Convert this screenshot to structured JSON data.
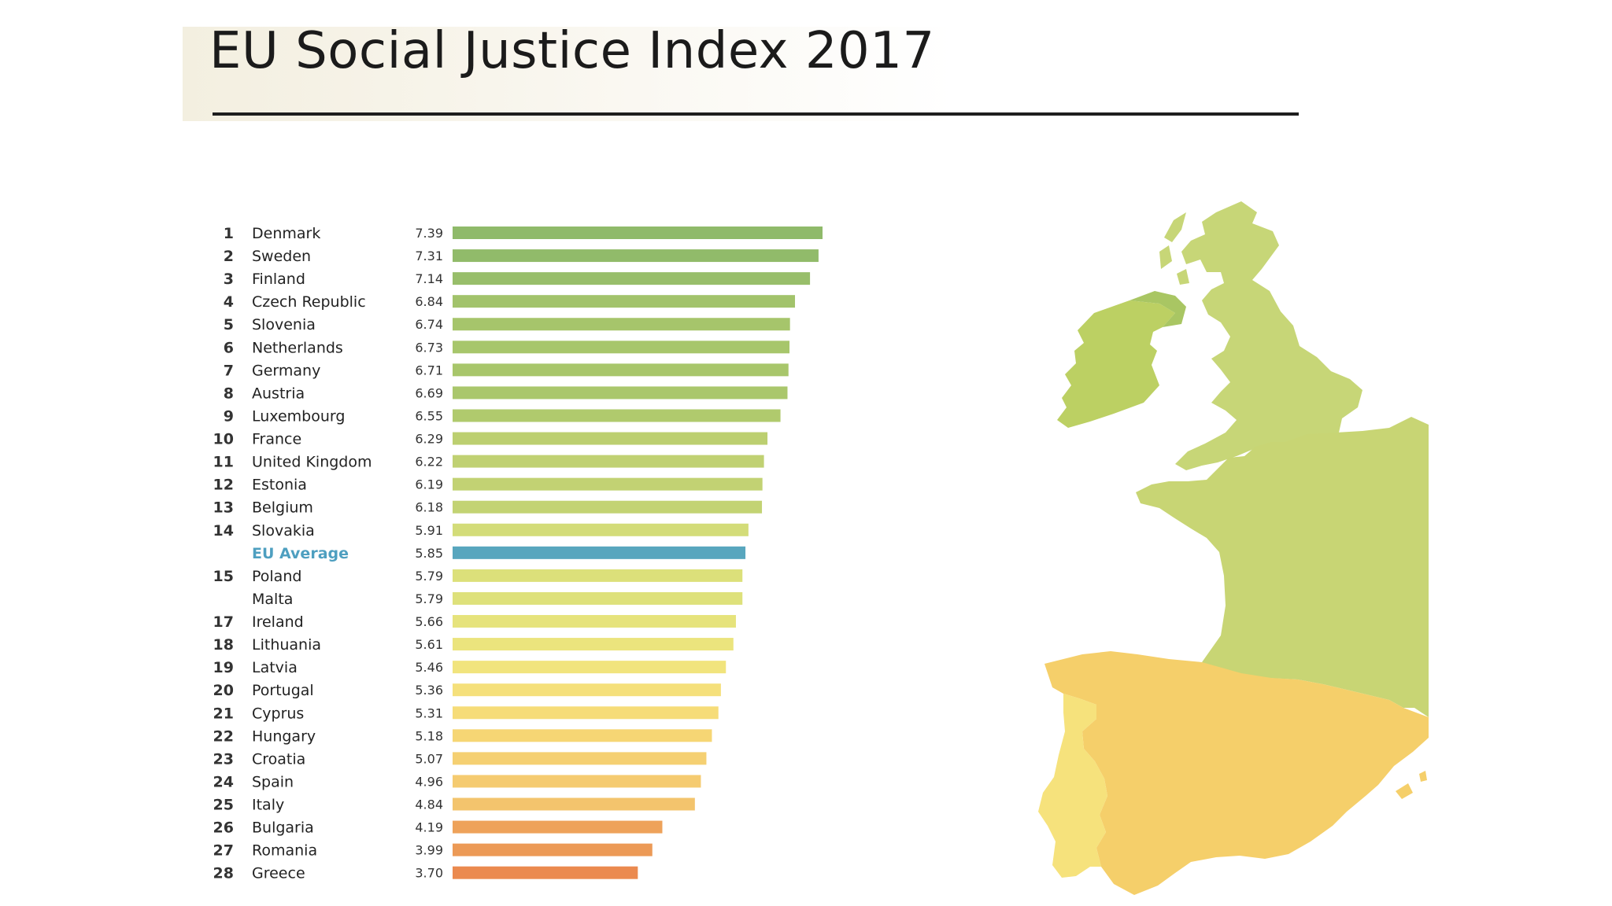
{
  "title": "EU Social Justice Index 2017",
  "colors": {
    "avg_bar": "#58a6be",
    "avg_text": "#4e9fc0",
    "map_ireland": "#bcd063",
    "map_uk": "#c7d677",
    "map_france": "#c8d574",
    "map_spain": "#f5cf6a",
    "map_portugal": "#f6e27c",
    "map_nir": "#a9c663"
  },
  "chart_data": {
    "type": "bar",
    "orientation": "horizontal",
    "title": "EU Social Justice Index 2017",
    "xlim": [
      0,
      7.39
    ],
    "grid": false,
    "rows": [
      {
        "rank": "1",
        "country": "Denmark",
        "value": 7.39,
        "label": "7.39",
        "color": "#8fba6a"
      },
      {
        "rank": "2",
        "country": "Sweden",
        "value": 7.31,
        "label": "7.31",
        "color": "#91bb6a"
      },
      {
        "rank": "3",
        "country": "Finland",
        "value": 7.14,
        "label": "7.14",
        "color": "#98be6a"
      },
      {
        "rank": "4",
        "country": "Czech Republic",
        "value": 6.84,
        "label": "6.84",
        "color": "#a2c36b"
      },
      {
        "rank": "5",
        "country": "Slovenia",
        "value": 6.74,
        "label": "6.74",
        "color": "#a6c56b"
      },
      {
        "rank": "6",
        "country": "Netherlands",
        "value": 6.73,
        "label": "6.73",
        "color": "#a7c66b"
      },
      {
        "rank": "7",
        "country": "Germany",
        "value": 6.71,
        "label": "6.71",
        "color": "#a8c66b"
      },
      {
        "rank": "8",
        "country": "Austria",
        "value": 6.69,
        "label": "6.69",
        "color": "#aac76c"
      },
      {
        "rank": "9",
        "country": "Luxembourg",
        "value": 6.55,
        "label": "6.55",
        "color": "#b0ca6d"
      },
      {
        "rank": "10",
        "country": "France",
        "value": 6.29,
        "label": "6.29",
        "color": "#bccf70"
      },
      {
        "rank": "11",
        "country": "United Kingdom",
        "value": 6.22,
        "label": "6.22",
        "color": "#c0d172"
      },
      {
        "rank": "12",
        "country": "Estonia",
        "value": 6.19,
        "label": "6.19",
        "color": "#c2d273"
      },
      {
        "rank": "13",
        "country": "Belgium",
        "value": 6.18,
        "label": "6.18",
        "color": "#c3d373"
      },
      {
        "rank": "14",
        "country": "Slovakia",
        "value": 5.91,
        "label": "5.91",
        "color": "#d3dc79"
      },
      {
        "rank": "",
        "country": "EU Average",
        "value": 5.85,
        "label": "5.85",
        "color": "#58a6be",
        "average": true
      },
      {
        "rank": "15",
        "country": "Poland",
        "value": 5.79,
        "label": "5.79",
        "color": "#dce07a"
      },
      {
        "rank": "",
        "country": "Malta",
        "value": 5.79,
        "label": "5.79",
        "color": "#dee17b"
      },
      {
        "rank": "17",
        "country": "Ireland",
        "value": 5.66,
        "label": "5.66",
        "color": "#e6e37c"
      },
      {
        "rank": "18",
        "country": "Lithuania",
        "value": 5.61,
        "label": "5.61",
        "color": "#ebe47d"
      },
      {
        "rank": "19",
        "country": "Latvia",
        "value": 5.46,
        "label": "5.46",
        "color": "#f1e47d"
      },
      {
        "rank": "20",
        "country": "Portugal",
        "value": 5.36,
        "label": "5.36",
        "color": "#f5e07b"
      },
      {
        "rank": "21",
        "country": "Cyprus",
        "value": 5.31,
        "label": "5.31",
        "color": "#f6dc78"
      },
      {
        "rank": "22",
        "country": "Hungary",
        "value": 5.18,
        "label": "5.18",
        "color": "#f6d674"
      },
      {
        "rank": "23",
        "country": "Croatia",
        "value": 5.07,
        "label": "5.07",
        "color": "#f5d072"
      },
      {
        "rank": "24",
        "country": "Spain",
        "value": 4.96,
        "label": "4.96",
        "color": "#f5cb70"
      },
      {
        "rank": "25",
        "country": "Italy",
        "value": 4.84,
        "label": "4.84",
        "color": "#f3c46d"
      },
      {
        "rank": "26",
        "country": "Bulgaria",
        "value": 4.19,
        "label": "4.19",
        "color": "#eea25a"
      },
      {
        "rank": "27",
        "country": "Romania",
        "value": 3.99,
        "label": "3.99",
        "color": "#ec9a56"
      },
      {
        "rank": "28",
        "country": "Greece",
        "value": 3.7,
        "label": "3.70",
        "color": "#eb8a4f"
      }
    ]
  }
}
